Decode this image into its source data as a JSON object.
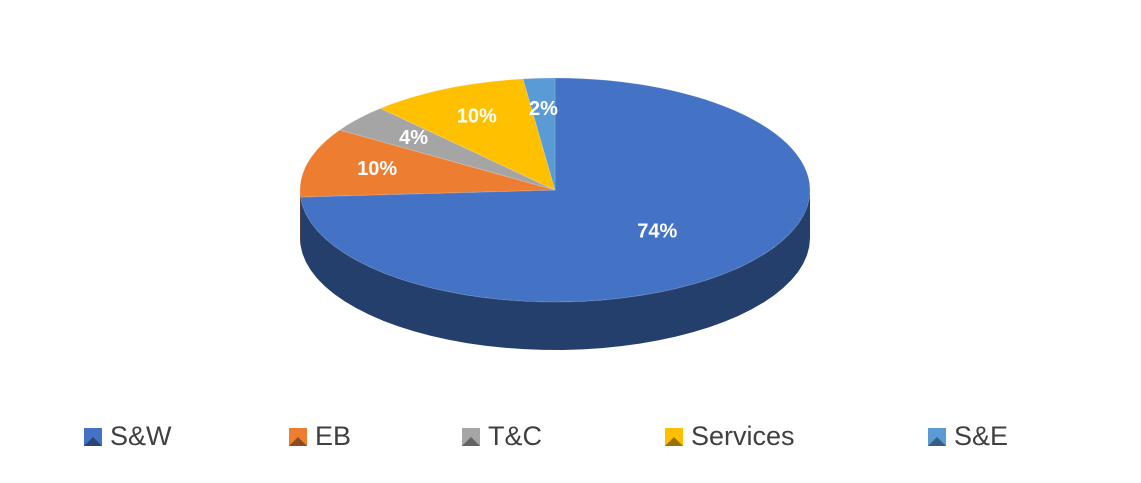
{
  "chart_data": {
    "type": "pie3d",
    "categories": [
      "S&W",
      "EB",
      "T&C",
      "Services",
      "S&E"
    ],
    "values": [
      74,
      10,
      4,
      10,
      2
    ],
    "value_labels": [
      "74%",
      "10%",
      "4%",
      "10%",
      "2%"
    ],
    "colors": [
      "#4472c4",
      "#ed7d31",
      "#a5a5a5",
      "#ffc000",
      "#5b9bd5"
    ],
    "legend": "bottom"
  }
}
